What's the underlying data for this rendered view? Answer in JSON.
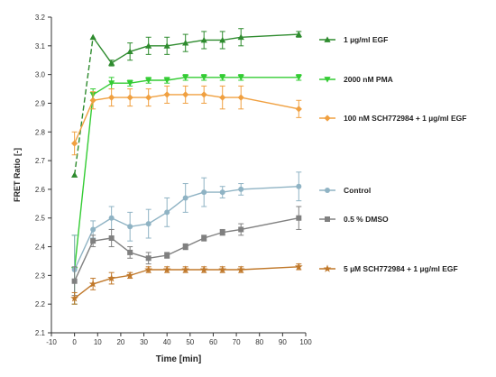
{
  "chart_data": {
    "type": "line",
    "title": "",
    "xlabel": "Time [min]",
    "ylabel": "FRET Ratio [-]",
    "xlim": [
      -10,
      100
    ],
    "ylim": [
      2.1,
      3.2
    ],
    "xticks": [
      -10,
      0,
      10,
      20,
      30,
      40,
      50,
      60,
      70,
      80,
      90,
      100
    ],
    "yticks": [
      2.1,
      2.2,
      2.3,
      2.4,
      2.5,
      2.6,
      2.7,
      2.8,
      2.9,
      3.0,
      3.1,
      3.2
    ],
    "grid": false,
    "legend_position": "right",
    "series": [
      {
        "name": "1 µg/ml EGF",
        "color": "#2e8b2e",
        "marker": "triangle-up",
        "dashed_first_segment": true,
        "x": [
          0,
          8,
          16,
          24,
          32,
          40,
          48,
          56,
          64,
          72,
          97
        ],
        "y": [
          2.65,
          3.13,
          3.04,
          3.08,
          3.1,
          3.1,
          3.11,
          3.12,
          3.12,
          3.13,
          3.14
        ],
        "err": [
          0,
          0,
          0.01,
          0.03,
          0.03,
          0.03,
          0.03,
          0.03,
          0.03,
          0.03,
          0.01
        ]
      },
      {
        "name": "2000 nM PMA",
        "color": "#33cc33",
        "marker": "triangle-down",
        "dashed_first_segment": false,
        "x": [
          0,
          8,
          16,
          24,
          32,
          40,
          48,
          56,
          64,
          72,
          97
        ],
        "y": [
          2.32,
          2.93,
          2.97,
          2.97,
          2.98,
          2.98,
          2.99,
          2.99,
          2.99,
          2.99,
          2.99
        ],
        "err": [
          0.12,
          0.02,
          0.02,
          0.01,
          0.01,
          0.01,
          0.01,
          0.01,
          0.01,
          0.01,
          0.01
        ]
      },
      {
        "name": "100 nM SCH772984 + 1 µg/ml EGF",
        "color": "#f0a040",
        "marker": "diamond",
        "dashed_first_segment": false,
        "x": [
          0,
          8,
          16,
          24,
          32,
          40,
          48,
          56,
          64,
          72,
          97
        ],
        "y": [
          2.76,
          2.91,
          2.92,
          2.92,
          2.92,
          2.93,
          2.93,
          2.93,
          2.92,
          2.92,
          2.88
        ],
        "err": [
          0.04,
          0.03,
          0.03,
          0.03,
          0.03,
          0.03,
          0.03,
          0.03,
          0.04,
          0.04,
          0.03
        ]
      },
      {
        "name": "Control",
        "color": "#8fb3c4",
        "marker": "circle",
        "dashed_first_segment": false,
        "x": [
          0,
          8,
          16,
          24,
          32,
          40,
          48,
          56,
          64,
          72,
          97
        ],
        "y": [
          2.32,
          2.46,
          2.5,
          2.47,
          2.48,
          2.52,
          2.57,
          2.59,
          2.59,
          2.6,
          2.61
        ],
        "err": [
          0.12,
          0.03,
          0.04,
          0.05,
          0.05,
          0.05,
          0.05,
          0.05,
          0.02,
          0.02,
          0.05
        ]
      },
      {
        "name": "0.5 % DMSO",
        "color": "#808080",
        "marker": "square",
        "dashed_first_segment": false,
        "x": [
          0,
          8,
          16,
          24,
          32,
          40,
          48,
          56,
          64,
          72,
          97
        ],
        "y": [
          2.28,
          2.42,
          2.43,
          2.38,
          2.36,
          2.37,
          2.4,
          2.43,
          2.45,
          2.46,
          2.5
        ],
        "err": [
          0.05,
          0.02,
          0.03,
          0.02,
          0.02,
          0.01,
          0.01,
          0.01,
          0.01,
          0.02,
          0.04
        ]
      },
      {
        "name": "5 µM SCH772984 + 1 µg/ml EGF",
        "color": "#c0782a",
        "marker": "star",
        "dashed_first_segment": false,
        "x": [
          0,
          8,
          16,
          24,
          32,
          40,
          48,
          56,
          64,
          72,
          97
        ],
        "y": [
          2.22,
          2.27,
          2.29,
          2.3,
          2.32,
          2.32,
          2.32,
          2.32,
          2.32,
          2.32,
          2.33
        ],
        "err": [
          0.02,
          0.02,
          0.02,
          0.01,
          0.01,
          0.01,
          0.01,
          0.01,
          0.01,
          0.01,
          0.01
        ]
      }
    ]
  }
}
